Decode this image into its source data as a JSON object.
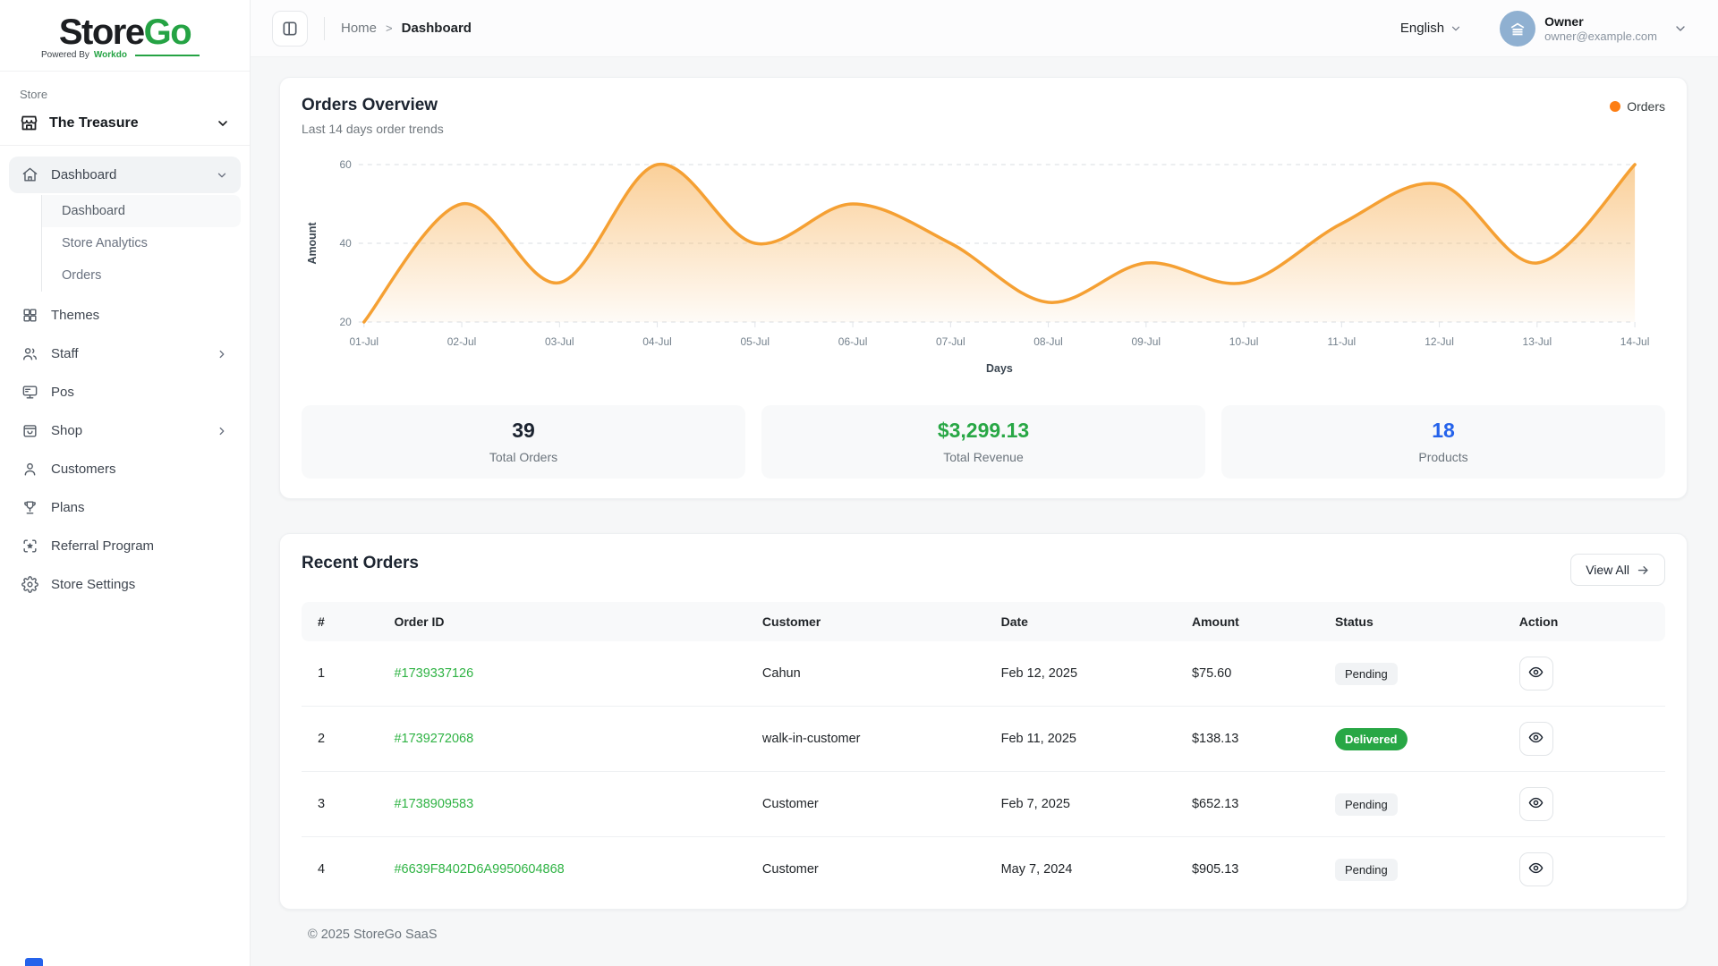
{
  "brand": {
    "logo_primary": "Store",
    "logo_accent": "Go",
    "powered_prefix": "Powered By",
    "powered_brand": "Workdo",
    "accent_color": "#25a344"
  },
  "sidebar": {
    "section_label": "Store",
    "store_name": "The Treasure",
    "menu": {
      "dashboard": "Dashboard",
      "themes": "Themes",
      "staff": "Staff",
      "pos": "Pos",
      "shop": "Shop",
      "customers": "Customers",
      "plans": "Plans",
      "referral": "Referral Program",
      "settings": "Store Settings"
    },
    "dashboard_children": [
      "Dashboard",
      "Store Analytics",
      "Orders"
    ]
  },
  "topbar": {
    "breadcrumb_home": "Home",
    "breadcrumb_separator": ">",
    "breadcrumb_current": "Dashboard",
    "language": "English",
    "user_role": "Owner",
    "user_email": "owner@example.com"
  },
  "overview": {
    "title": "Orders Overview",
    "subtitle": "Last 14 days order trends",
    "legend_label": "Orders",
    "legend_color": "#fd7e14",
    "stats": [
      {
        "value": "39",
        "label": "Total Orders",
        "color": "#1c2430"
      },
      {
        "value": "$3,299.13",
        "label": "Total Revenue",
        "color": "#28a745"
      },
      {
        "value": "18",
        "label": "Products",
        "color": "#2563eb"
      }
    ]
  },
  "chart_data": {
    "type": "area",
    "title": "Orders Overview",
    "x": [
      "01-Jul",
      "02-Jul",
      "03-Jul",
      "04-Jul",
      "05-Jul",
      "06-Jul",
      "07-Jul",
      "08-Jul",
      "09-Jul",
      "10-Jul",
      "11-Jul",
      "12-Jul",
      "13-Jul",
      "14-Jul"
    ],
    "series": [
      {
        "name": "Orders",
        "values": [
          20,
          50,
          30,
          60,
          40,
          50,
          40,
          25,
          35,
          30,
          45,
          55,
          35,
          60
        ]
      }
    ],
    "xlabel": "Days",
    "ylabel": "Amount",
    "yticks": [
      20,
      40,
      60
    ],
    "ylim": [
      20,
      60
    ],
    "grid": "horizontal-dashed",
    "legend_position": "top-right",
    "line_color": "#f5a033",
    "curve": "smooth",
    "fill": "gradient-to-transparent"
  },
  "recent_orders": {
    "title": "Recent Orders",
    "view_all": "View All",
    "columns": [
      "#",
      "Order ID",
      "Customer",
      "Date",
      "Amount",
      "Status",
      "Action"
    ],
    "rows": [
      {
        "index": "1",
        "order_id": "#1739337126",
        "customer": "Cahun",
        "date": "Feb 12, 2025",
        "amount": "$75.60",
        "status": "Pending",
        "status_type": "pending"
      },
      {
        "index": "2",
        "order_id": "#1739272068",
        "customer": "walk-in-customer",
        "date": "Feb 11, 2025",
        "amount": "$138.13",
        "status": "Delivered",
        "status_type": "delivered"
      },
      {
        "index": "3",
        "order_id": "#1738909583",
        "customer": "Customer",
        "date": "Feb 7, 2025",
        "amount": "$652.13",
        "status": "Pending",
        "status_type": "pending"
      },
      {
        "index": "4",
        "order_id": "#6639F8402D6A9950604868",
        "customer": "Customer",
        "date": "May 7, 2024",
        "amount": "$905.13",
        "status": "Pending",
        "status_type": "pending"
      }
    ]
  },
  "footer": {
    "copyright": "© 2025 StoreGo SaaS"
  }
}
